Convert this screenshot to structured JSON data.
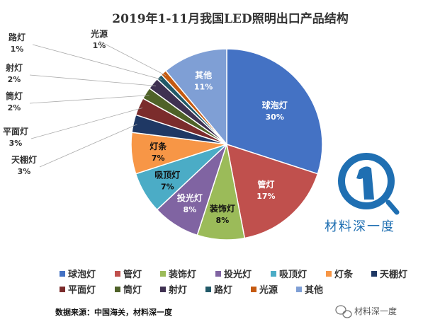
{
  "chart_data": {
    "type": "pie",
    "title": "2019年1-11月我国LED照明出口产品结构",
    "slices": [
      {
        "name": "球泡灯",
        "value": 30,
        "label": "30%",
        "color": "#4472c4"
      },
      {
        "name": "管灯",
        "value": 17,
        "label": "17%",
        "color": "#c0504d"
      },
      {
        "name": "装饰灯",
        "value": 8,
        "label": "8%",
        "color": "#9bbb59"
      },
      {
        "name": "投光灯",
        "value": 8,
        "label": "8%",
        "color": "#8064a2"
      },
      {
        "name": "吸顶灯",
        "value": 7,
        "label": "7%",
        "color": "#4bacc6"
      },
      {
        "name": "灯条",
        "value": 7,
        "label": "7%",
        "color": "#f79646"
      },
      {
        "name": "天棚灯",
        "value": 3,
        "label": "3%",
        "color": "#1f3864"
      },
      {
        "name": "平面灯",
        "value": 3,
        "label": "3%",
        "color": "#7b2c2c"
      },
      {
        "name": "筒灯",
        "value": 2,
        "label": "2%",
        "color": "#4f6228"
      },
      {
        "name": "射灯",
        "value": 2,
        "label": "2%",
        "color": "#3f3151"
      },
      {
        "name": "路灯",
        "value": 1,
        "label": "1%",
        "color": "#215968"
      },
      {
        "name": "光源",
        "value": 1,
        "label": "1%",
        "color": "#c55a11"
      },
      {
        "name": "其他",
        "value": 11,
        "label": "11%",
        "color": "#7f9fd5"
      }
    ],
    "legend_position": "bottom"
  },
  "source_note": "数据来源：中国海关，材料深一度",
  "logo": {
    "text": "材料深一度",
    "icon": "magnifier-logo-icon"
  },
  "watermark": {
    "text": "材料深一度",
    "icon": "wechat-icon"
  }
}
